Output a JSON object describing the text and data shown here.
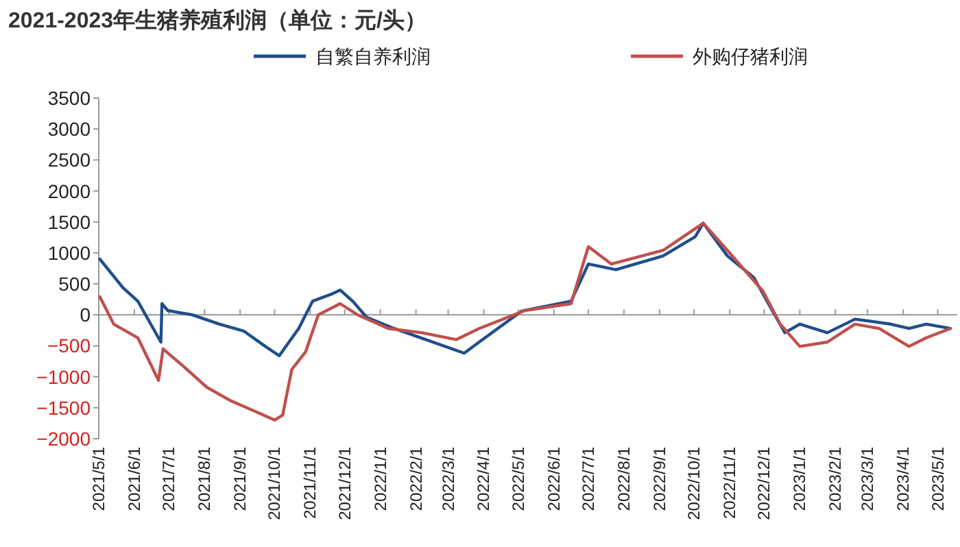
{
  "chart_data": {
    "type": "line",
    "title": "2021-2023年生猪养殖利润（单位：元/头）",
    "legend": "top",
    "line_style": "solid",
    "marker": "none",
    "xlim": [
      "2021-05-01",
      "2023-05-18"
    ],
    "ylim": [
      -2000,
      3500
    ],
    "yticks": [
      -2000,
      -1500,
      -1000,
      -500,
      0,
      500,
      1000,
      1500,
      2000,
      2500,
      3000,
      3500
    ],
    "xticks": [
      {
        "value": "2021-05-01",
        "label": "2021/5/1"
      },
      {
        "value": "2021-06-01",
        "label": "2021/6/1"
      },
      {
        "value": "2021-07-01",
        "label": "2021/7/1"
      },
      {
        "value": "2021-08-01",
        "label": "2021/8/1"
      },
      {
        "value": "2021-09-01",
        "label": "2021/9/1"
      },
      {
        "value": "2021-10-01",
        "label": "2021/10/1"
      },
      {
        "value": "2021-11-01",
        "label": "2021/11/1"
      },
      {
        "value": "2021-12-01",
        "label": "2021/12/1"
      },
      {
        "value": "2022-01-01",
        "label": "2022/1/1"
      },
      {
        "value": "2022-02-01",
        "label": "2022/2/1"
      },
      {
        "value": "2022-03-01",
        "label": "2022/3/1"
      },
      {
        "value": "2022-04-01",
        "label": "2022/4/1"
      },
      {
        "value": "2022-05-01",
        "label": "2022/5/1"
      },
      {
        "value": "2022-06-01",
        "label": "2022/6/1"
      },
      {
        "value": "2022-07-01",
        "label": "2022/7/1"
      },
      {
        "value": "2022-08-01",
        "label": "2022/8/1"
      },
      {
        "value": "2022-09-01",
        "label": "2022/9/1"
      },
      {
        "value": "2022-10-01",
        "label": "2022/10/1"
      },
      {
        "value": "2022-11-01",
        "label": "2022/11/1"
      },
      {
        "value": "2022-12-01",
        "label": "2022/12/1"
      },
      {
        "value": "2023-01-01",
        "label": "2023/1/1"
      },
      {
        "value": "2023-02-01",
        "label": "2023/2/1"
      },
      {
        "value": "2023-03-01",
        "label": "2023/3/1"
      },
      {
        "value": "2023-04-01",
        "label": "2023/4/1"
      },
      {
        "value": "2023-05-01",
        "label": "2023/5/1"
      }
    ],
    "series": [
      {
        "name": "自繁自养利润",
        "color": "#1f4e8c",
        "x": [
          "2021-05-02",
          "2021-05-22",
          "2021-06-04",
          "2021-06-24",
          "2021-06-25",
          "2021-06-30",
          "2021-07-21",
          "2021-08-14",
          "2021-09-04",
          "2021-09-23",
          "2021-10-05",
          "2021-10-22",
          "2021-11-03",
          "2021-11-19",
          "2021-11-27",
          "2021-12-08",
          "2021-12-20",
          "2022-01-13",
          "2022-03-15",
          "2022-03-28",
          "2022-05-04",
          "2022-06-16",
          "2022-07-01",
          "2022-07-25",
          "2022-09-04",
          "2022-10-02",
          "2022-10-09",
          "2022-10-30",
          "2022-11-22",
          "2022-12-08",
          "2022-12-19",
          "2023-01-01",
          "2023-01-25",
          "2023-02-18",
          "2023-03-21",
          "2023-04-06",
          "2023-04-21",
          "2023-05-12"
        ],
        "values": [
          900,
          440,
          220,
          -440,
          180,
          70,
          0,
          -150,
          -260,
          -510,
          -660,
          -220,
          220,
          330,
          400,
          220,
          -40,
          -220,
          -620,
          -440,
          60,
          220,
          820,
          730,
          950,
          1260,
          1480,
          950,
          600,
          70,
          -290,
          -150,
          -290,
          -70,
          -150,
          -220,
          -150,
          -220
        ]
      },
      {
        "name": "外购仔猪利润",
        "color": "#c0504d",
        "x": [
          "2021-05-02",
          "2021-05-14",
          "2021-06-04",
          "2021-06-22",
          "2021-06-26",
          "2021-07-13",
          "2021-08-03",
          "2021-08-24",
          "2021-09-18",
          "2021-10-01",
          "2021-10-08",
          "2021-10-16",
          "2021-10-28",
          "2021-11-08",
          "2021-11-27",
          "2021-12-12",
          "2022-01-08",
          "2022-02-06",
          "2022-03-08",
          "2022-03-28",
          "2022-05-07",
          "2022-06-16",
          "2022-07-01",
          "2022-07-21",
          "2022-09-04",
          "2022-10-09",
          "2022-10-30",
          "2022-11-30",
          "2022-12-15",
          "2023-01-01",
          "2023-01-25",
          "2023-02-18",
          "2023-03-11",
          "2023-04-06",
          "2023-04-21",
          "2023-05-12"
        ],
        "values": [
          290,
          -150,
          -370,
          -1060,
          -550,
          -820,
          -1170,
          -1390,
          -1590,
          -1700,
          -1620,
          -880,
          -600,
          0,
          180,
          0,
          -220,
          -290,
          -400,
          -220,
          70,
          180,
          1100,
          820,
          1040,
          1480,
          1040,
          380,
          -150,
          -510,
          -440,
          -150,
          -220,
          -510,
          -370,
          -220
        ]
      }
    ]
  }
}
